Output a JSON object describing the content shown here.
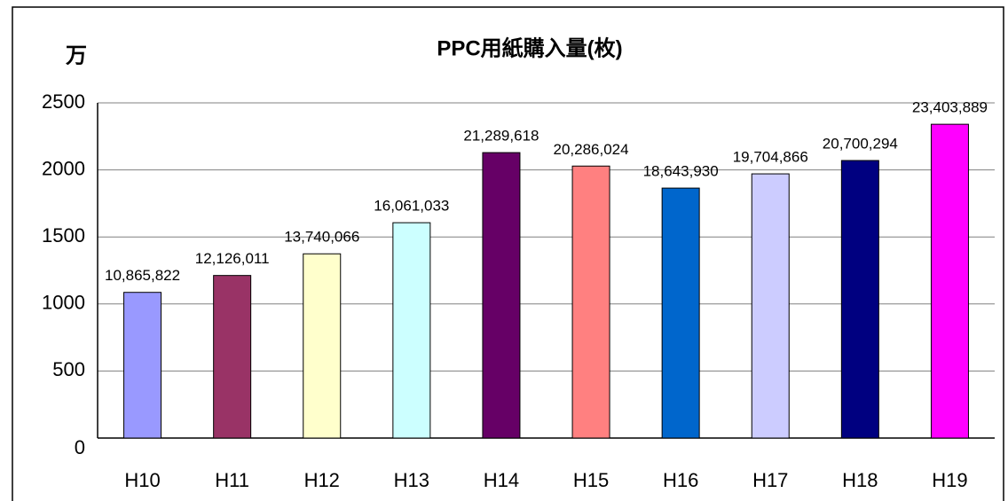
{
  "chart_data": {
    "type": "bar",
    "title": "PPC用紙購入量(枚)",
    "y_axis_label": "万",
    "categories": [
      "H10",
      "H11",
      "H12",
      "H13",
      "H14",
      "H15",
      "H16",
      "H17",
      "H18",
      "H19"
    ],
    "values": [
      1086.5822,
      1212.6011,
      1374.0066,
      1606.1033,
      2128.9618,
      2028.6024,
      1864.393,
      1970.4866,
      2070.0294,
      2340.3889
    ],
    "value_labels": [
      "10,865,822",
      "12,126,011",
      "13,740,066",
      "16,061,033",
      "21,289,618",
      "20,286,024",
      "18,643,930",
      "19,704,866",
      "20,700,294",
      "23,403,889"
    ],
    "colors": [
      "#9999ff",
      "#993366",
      "#ffffcc",
      "#ccffff",
      "#660066",
      "#ff8080",
      "#0066cc",
      "#ccccff",
      "#000080",
      "#ff00ff"
    ],
    "ylim": [
      0,
      2500
    ],
    "yticks": [
      0,
      500,
      1000,
      1500,
      2000,
      2500
    ],
    "grid": true
  }
}
